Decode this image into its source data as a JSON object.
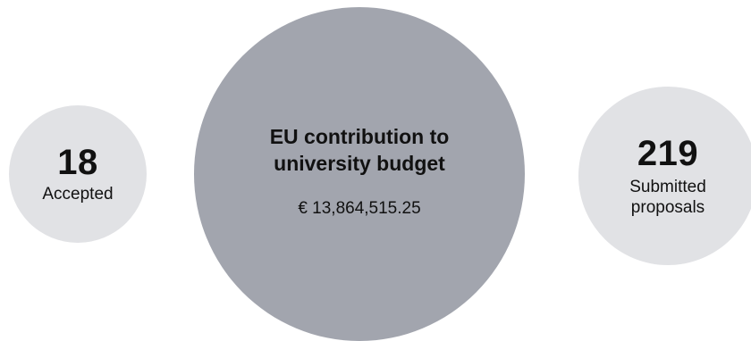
{
  "accepted": {
    "value": "18",
    "label": "Accepted"
  },
  "eu_contribution": {
    "title_line1": "EU contribution to",
    "title_line2": "university budget",
    "amount": "€ 13,864,515.25"
  },
  "submitted": {
    "value": "219",
    "label_line1": "Submitted",
    "label_line2": "proposals"
  },
  "colors": {
    "small_circle": "#e1e2e5",
    "large_circle": "#a2a5ae",
    "text": "#111111"
  }
}
